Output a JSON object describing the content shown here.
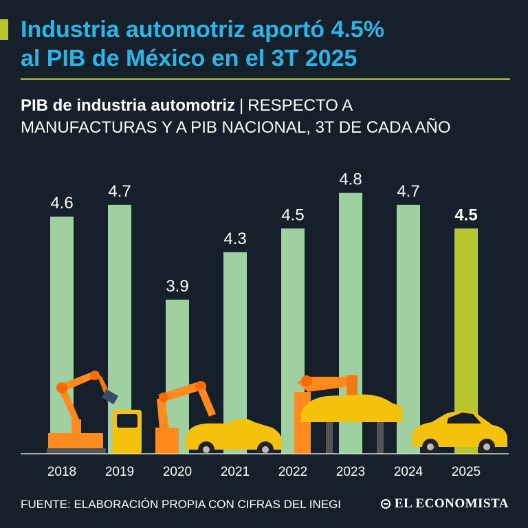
{
  "header": {
    "title_line1": "Industria automotriz aportó 4.5%",
    "title_line2": "al PIB de México en el 3T 2025",
    "subtitle_bold": "PIB de industria automotriz",
    "subtitle_sep": "|",
    "subtitle_rest_line1": "RESPECTO A",
    "subtitle_line2": "MANUFACTURAS Y A PIB NACIONAL,  3T DE CADA AÑO"
  },
  "chart_data": {
    "type": "bar",
    "title": "PIB de industria automotriz",
    "xlabel": "",
    "ylabel": "",
    "categories": [
      "2018",
      "2019",
      "2020",
      "2021",
      "2022",
      "2023",
      "2024",
      "2025"
    ],
    "values": [
      4.6,
      4.7,
      3.9,
      4.3,
      4.5,
      4.8,
      4.7,
      4.5
    ],
    "value_labels": [
      "4.6",
      "4.7",
      "3.9",
      "4.3",
      "4.5",
      "4.8",
      "4.7",
      "4.5"
    ],
    "highlight_index": 7,
    "colors": {
      "bar": "#9fd0a0",
      "highlight": "#b6c62b",
      "axis": "#d9d9d9"
    },
    "ylim": [
      2.6,
      4.85
    ]
  },
  "footer": {
    "source": "FUENTE: ELABORACIÓN PROPIA CON CIFRAS DEL INEGI",
    "logo": "EL ECONOMISTA"
  },
  "colors": {
    "background": "#16202b",
    "title": "#29b6e6",
    "accent": "#b6c62b"
  }
}
